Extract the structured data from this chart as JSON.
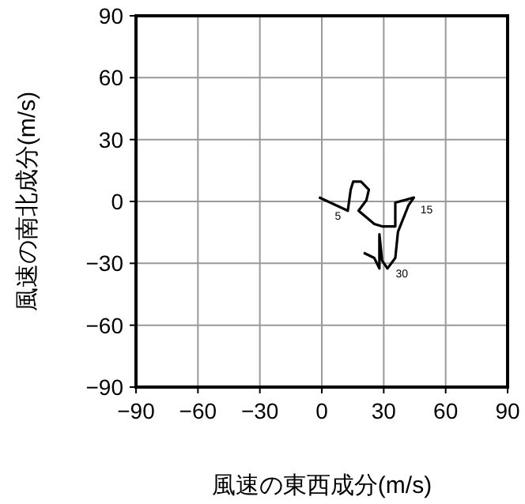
{
  "chart_data": {
    "type": "line",
    "xlabel": "風速の東西成分(m/s)",
    "ylabel": "風速の南北成分(m/s)",
    "xlim": [
      -90,
      90
    ],
    "ylim": [
      -90,
      90
    ],
    "xticks": [
      {
        "value": -90,
        "label": "−90"
      },
      {
        "value": -60,
        "label": "−60"
      },
      {
        "value": -30,
        "label": "−30"
      },
      0,
      30,
      60,
      90
    ],
    "yticks": [
      {
        "value": -90,
        "label": "−90"
      },
      {
        "value": -60,
        "label": "−60"
      },
      {
        "value": -30,
        "label": "−30"
      },
      0,
      30,
      60,
      90
    ],
    "grid": true,
    "marker": "none",
    "line_style": "solid",
    "series": [
      {
        "color": "#000000",
        "x": [
          -1.4,
          12.6,
          14,
          15.2,
          19,
          22.8,
          21.6,
          17.8,
          25.4,
          29.2,
          35.6,
          35.6,
          44.6,
          42,
          36.9,
          35.6,
          31.8,
          29.2,
          27.9,
          27.9,
          25.4,
          20.3
        ],
        "values": [
          2,
          -4.5,
          5.7,
          9.6,
          9.6,
          5.7,
          0.6,
          -4.5,
          -10.9,
          -12.1,
          -12.1,
          -0.6,
          1.9,
          -1.9,
          -14.7,
          -27.4,
          -32.5,
          -28.7,
          -15.9,
          -32.5,
          -27.4,
          -24.9
        ]
      }
    ],
    "annotations": [
      {
        "text": "5",
        "x": 5.6,
        "y": -1.25
      },
      {
        "text": "15",
        "x": 47,
        "y": 2
      },
      {
        "text": "30",
        "x": 35,
        "y": -29
      }
    ]
  }
}
